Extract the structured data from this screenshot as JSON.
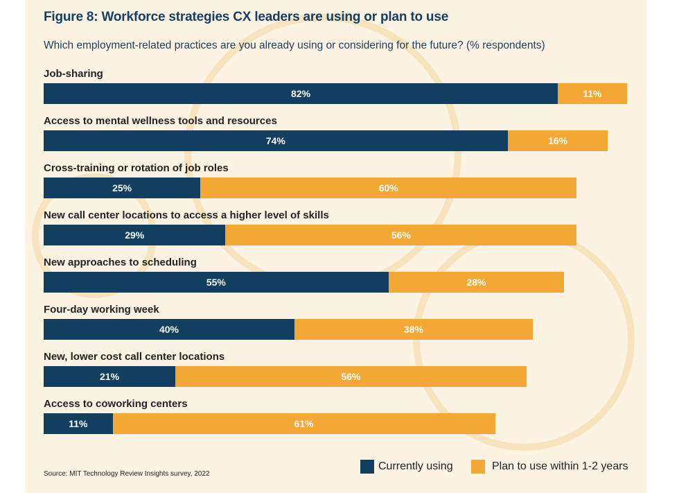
{
  "chart_data": {
    "type": "bar",
    "orientation": "horizontal",
    "stacked": true,
    "title": "Figure 8: Workforce strategies CX leaders are using or plan to use",
    "subtitle": "Which employment-related practices are you already using or considering for the future? (% respondents)",
    "categories": [
      "Job-sharing",
      "Access to mental wellness tools and resources",
      "Cross-training or rotation of job roles",
      "New call center locations to access a higher level of skills",
      "New approaches to scheduling",
      "Four-day working week",
      "New, lower cost call center locations",
      "Access to coworking centers"
    ],
    "series": [
      {
        "name": "Currently using",
        "color": "#123e5f",
        "values": [
          82,
          74,
          25,
          29,
          55,
          40,
          21,
          11
        ]
      },
      {
        "name": "Plan to use within 1-2 years",
        "color": "#f3a836",
        "values": [
          11,
          16,
          60,
          56,
          28,
          38,
          56,
          61
        ]
      }
    ],
    "unit": "%",
    "legend_position": "bottom-right",
    "grid": false,
    "source": "Source: MIT Technology Review Insights survey, 2022"
  }
}
